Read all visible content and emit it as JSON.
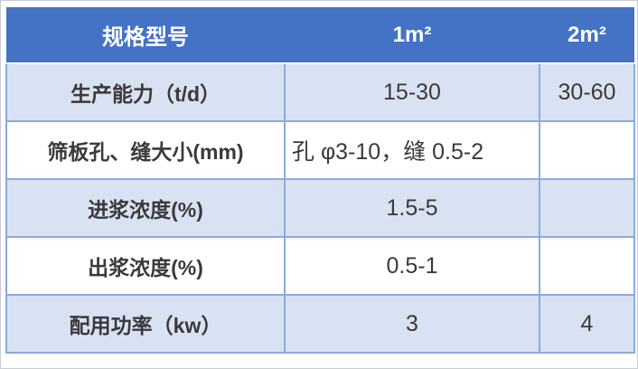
{
  "table": {
    "header": [
      "规格型号",
      "1m²",
      "2m²"
    ],
    "rows": [
      {
        "label": "生产能力（t/d）",
        "values": [
          "15-30",
          "30-60"
        ]
      },
      {
        "label": "筛板孔、缝大小(mm)",
        "values": [
          "孔 φ3-10，缝 0.5-2",
          ""
        ]
      },
      {
        "label": "进浆浓度(%)",
        "values": [
          "1.5-5",
          ""
        ]
      },
      {
        "label": "出浆浓度(%)",
        "values": [
          "0.5-1",
          ""
        ]
      },
      {
        "label": "配用功率（kw）",
        "values": [
          "3",
          "4"
        ]
      }
    ],
    "colors": {
      "header_bg": "#4472C4",
      "header_text": "#FFFFFF",
      "band_row_bg": "#D9E2F3",
      "plain_row_bg": "#FFFFFF",
      "grid_border": "#8EAADB",
      "body_text": "#3A3A3A"
    }
  }
}
